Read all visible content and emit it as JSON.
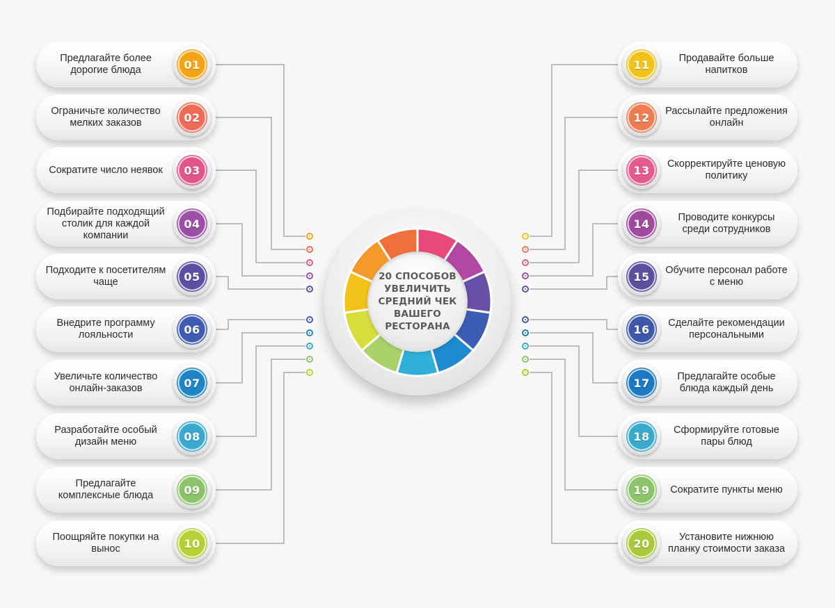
{
  "hub": {
    "title_lines": [
      "20 способов",
      "увеличить",
      "средний чек",
      "вашего",
      "ресторана"
    ]
  },
  "items": [
    {
      "num": "01",
      "text": "Предлагайте более дорогие блюда",
      "color": "#f4a413"
    },
    {
      "num": "02",
      "text": "Ограничьте количество мелких заказов",
      "color": "#ef6b55"
    },
    {
      "num": "03",
      "text": "Сократите число неявок",
      "color": "#e2558b"
    },
    {
      "num": "04",
      "text": "Подбирайте подходящий столик для каждой компании",
      "color": "#9b4fa6"
    },
    {
      "num": "05",
      "text": "Подходите к посетителям чаще",
      "color": "#5a4fa0"
    },
    {
      "num": "06",
      "text": "Внедрите программу лояльности",
      "color": "#3f5db0"
    },
    {
      "num": "07",
      "text": "Увеличьте количество онлайн-заказов",
      "color": "#1f84c6"
    },
    {
      "num": "08",
      "text": "Разработайте особый дизайн меню",
      "color": "#3aa8cf"
    },
    {
      "num": "09",
      "text": "Предлагайте комплексные блюда",
      "color": "#8cc36a"
    },
    {
      "num": "10",
      "text": "Поощряйте покупки на вынос",
      "color": "#b9cf36"
    },
    {
      "num": "11",
      "text": "Продавайте больше напитков",
      "color": "#f2c21b"
    },
    {
      "num": "12",
      "text": "Рассылайте предложения онлайн",
      "color": "#ef7b52"
    },
    {
      "num": "13",
      "text": "Скорректируйте ценовую политику",
      "color": "#e45a8e"
    },
    {
      "num": "14",
      "text": "Проводите конкурсы среди сотрудников",
      "color": "#a04a9e"
    },
    {
      "num": "15",
      "text": "Обучите персонал работе с меню",
      "color": "#5b4f9e"
    },
    {
      "num": "16",
      "text": "Сделайте рекомендации персональными",
      "color": "#3d58a8"
    },
    {
      "num": "17",
      "text": "Предлагайте особые блюда каждый день",
      "color": "#1c78c0"
    },
    {
      "num": "18",
      "text": "Сформируйте готовые пары блюд",
      "color": "#3aa9cc"
    },
    {
      "num": "19",
      "text": "Сократите пункты меню",
      "color": "#8cc46b"
    },
    {
      "num": "20",
      "text": "Установите нижнюю планку стоимости заказа",
      "color": "#a9c93a"
    }
  ],
  "wheel_colors": [
    "#e6497a",
    "#b048a2",
    "#6a4fa6",
    "#3c5db5",
    "#1f8ad0",
    "#2fb0d8",
    "#a8d36a",
    "#d7dd3a",
    "#f2c21b",
    "#f49a2a",
    "#f0703c"
  ]
}
